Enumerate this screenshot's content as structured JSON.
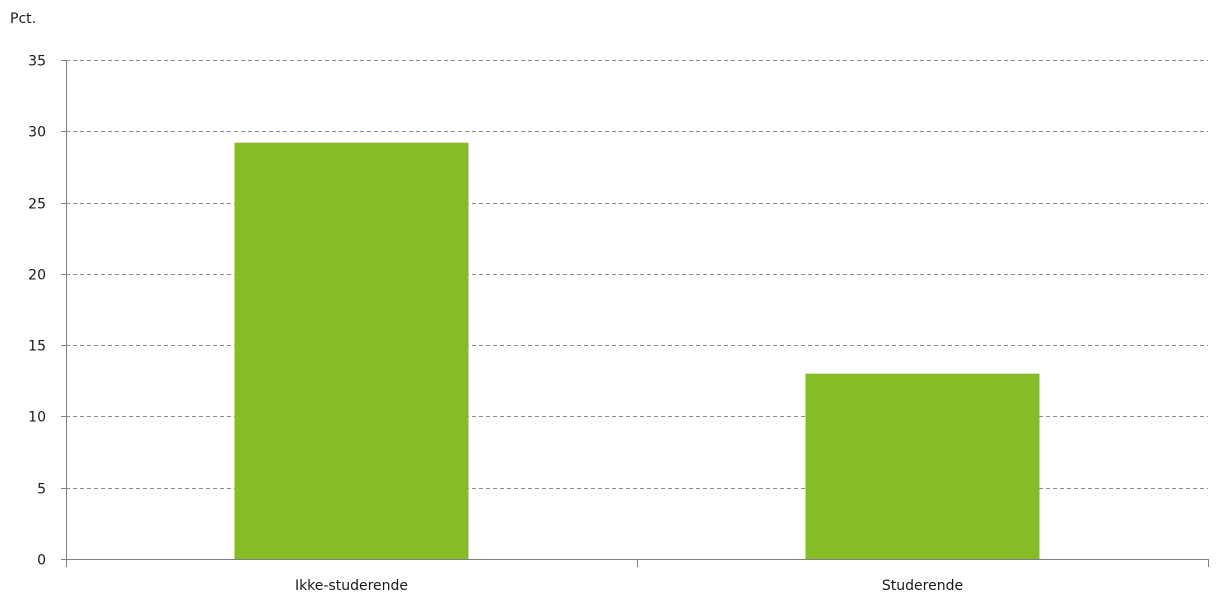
{
  "chart_data": {
    "type": "bar",
    "ylabel": "Pct.",
    "categories": [
      "Ikke-studerende",
      "Studerende"
    ],
    "values": [
      29.2,
      13.0
    ],
    "ylim": [
      0,
      35
    ],
    "yticks": [
      0,
      5,
      10,
      15,
      20,
      25,
      30,
      35
    ],
    "grid": true,
    "legend": "none"
  },
  "colors": {
    "bar": "#86bc25",
    "grid": "#8c8c8c",
    "axis": "#7f7f7f"
  }
}
